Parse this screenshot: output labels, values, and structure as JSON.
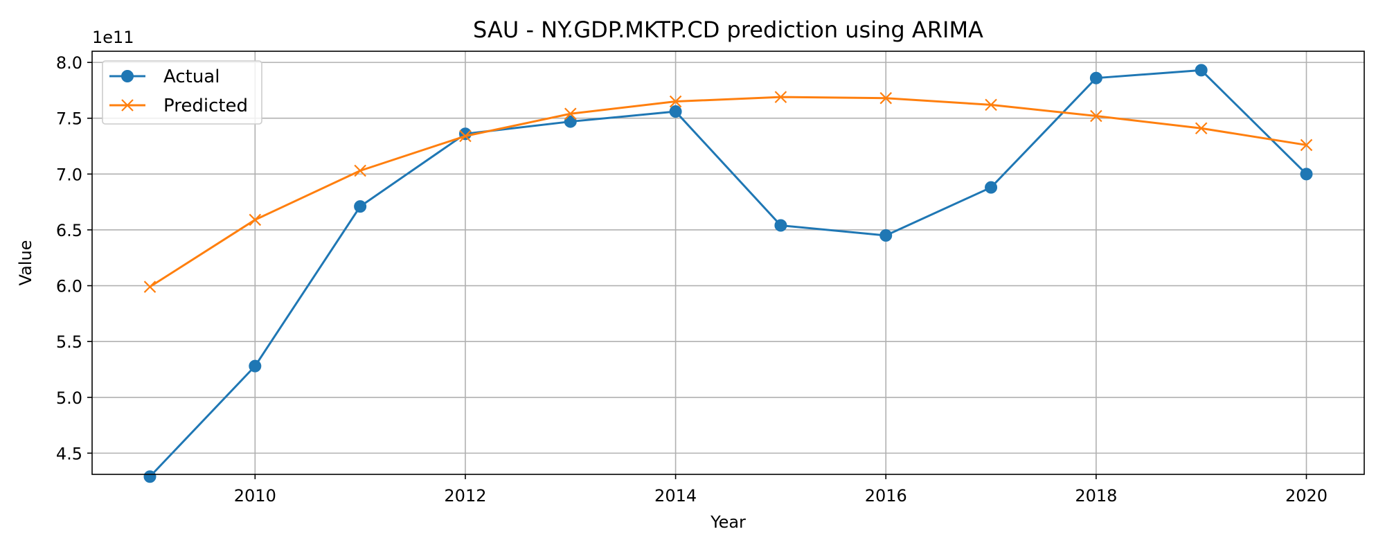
{
  "chart_data": {
    "type": "line",
    "title": "SAU - NY.GDP.MKTP.CD prediction using ARIMA",
    "xlabel": "Year",
    "ylabel": "Value",
    "y_offset_text": "1e11",
    "x": [
      2009,
      2010,
      2011,
      2012,
      2013,
      2014,
      2015,
      2016,
      2017,
      2018,
      2019,
      2020
    ],
    "xlim": [
      2008.45,
      2020.55
    ],
    "ylim": [
      4.31,
      8.1
    ],
    "x_ticks": [
      2010,
      2012,
      2014,
      2016,
      2018,
      2020
    ],
    "x_tick_labels": [
      "2010",
      "2012",
      "2014",
      "2016",
      "2018",
      "2020"
    ],
    "y_ticks": [
      4.5,
      5.0,
      5.5,
      6.0,
      6.5,
      7.0,
      7.5,
      8.0
    ],
    "y_tick_labels": [
      "4.5",
      "5.0",
      "5.5",
      "6.0",
      "6.5",
      "7.0",
      "7.5",
      "8.0"
    ],
    "grid": true,
    "legend_position": "top-left",
    "series": [
      {
        "name": "Actual",
        "color": "#1f77b4",
        "marker": "circle",
        "values": [
          4.29,
          5.28,
          6.71,
          7.36,
          7.47,
          7.56,
          6.54,
          6.45,
          6.88,
          7.86,
          7.93,
          7.0
        ]
      },
      {
        "name": "Predicted",
        "color": "#ff7f0e",
        "marker": "x",
        "values": [
          5.99,
          6.59,
          7.03,
          7.34,
          7.54,
          7.65,
          7.69,
          7.68,
          7.62,
          7.52,
          7.41,
          7.26
        ]
      }
    ]
  }
}
